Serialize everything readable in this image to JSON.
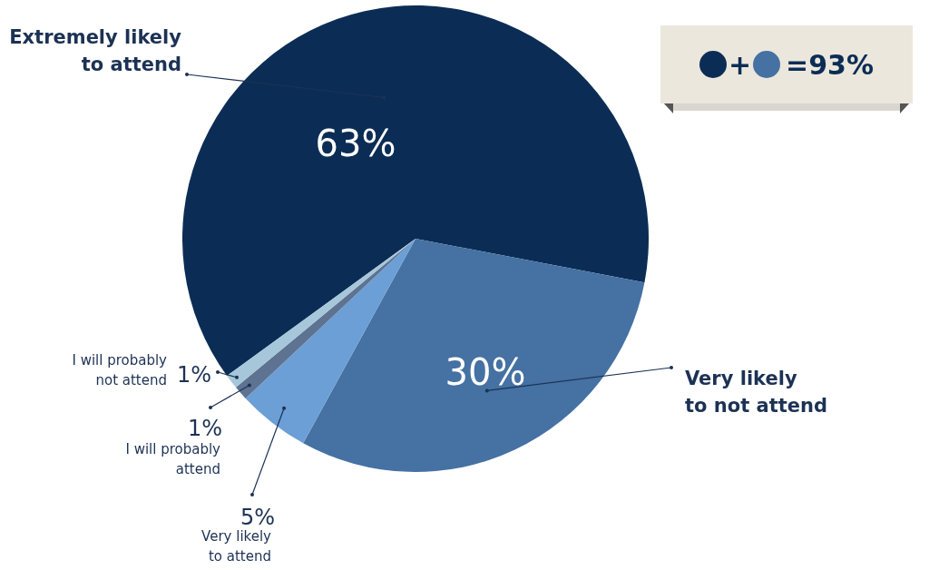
{
  "chart_data": {
    "type": "pie",
    "categories": [
      "Extremely likely to attend",
      "Very likely to not attend",
      "Very likely to attend",
      "I will probably attend",
      "I will probably not attend"
    ],
    "values": [
      63,
      30,
      5,
      1,
      1
    ],
    "colors": [
      "#0b2d55",
      "#4571a3",
      "#6b9fd6",
      "#5d7391",
      "#a6c6da"
    ],
    "value_labels": [
      "63%",
      "30%",
      "5%",
      "1%",
      "1%"
    ],
    "annotations": [
      "+",
      "=93%"
    ],
    "legend": false
  }
}
